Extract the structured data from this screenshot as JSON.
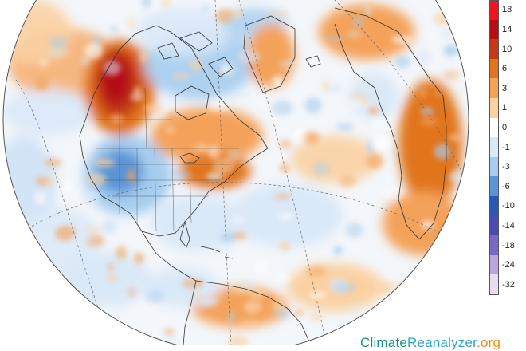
{
  "legend": {
    "entries": [
      {
        "label": "18",
        "color": "#f0141e"
      },
      {
        "label": "14",
        "color": "#b50f16"
      },
      {
        "label": "10",
        "color": "#c53a16"
      },
      {
        "label": "6",
        "color": "#e1741e"
      },
      {
        "label": "3",
        "color": "#f4a25a"
      },
      {
        "label": "1",
        "color": "#fbd1a2"
      },
      {
        "label": "0",
        "color": "#ffffff"
      },
      {
        "label": "-1",
        "color": "#dae9f8"
      },
      {
        "label": "-3",
        "color": "#a6cdef"
      },
      {
        "label": "-6",
        "color": "#5b95d6"
      },
      {
        "label": "-10",
        "color": "#2b58b3"
      },
      {
        "label": "-14",
        "color": "#4a4cb0"
      },
      {
        "label": "-18",
        "color": "#7a68c6"
      },
      {
        "label": "-24",
        "color": "#b9a6de"
      },
      {
        "label": "-32",
        "color": "#e8dcf0"
      }
    ]
  },
  "watermark": {
    "part1": "Climate",
    "part2": "Reanalyzer",
    "part3": ".org",
    "color1": "#1a8f7a",
    "color2": "#2ba7c9",
    "color3": "#f08a1e"
  },
  "map": {
    "ocean_color": "#f4f7fb",
    "border_color": "#333333"
  }
}
